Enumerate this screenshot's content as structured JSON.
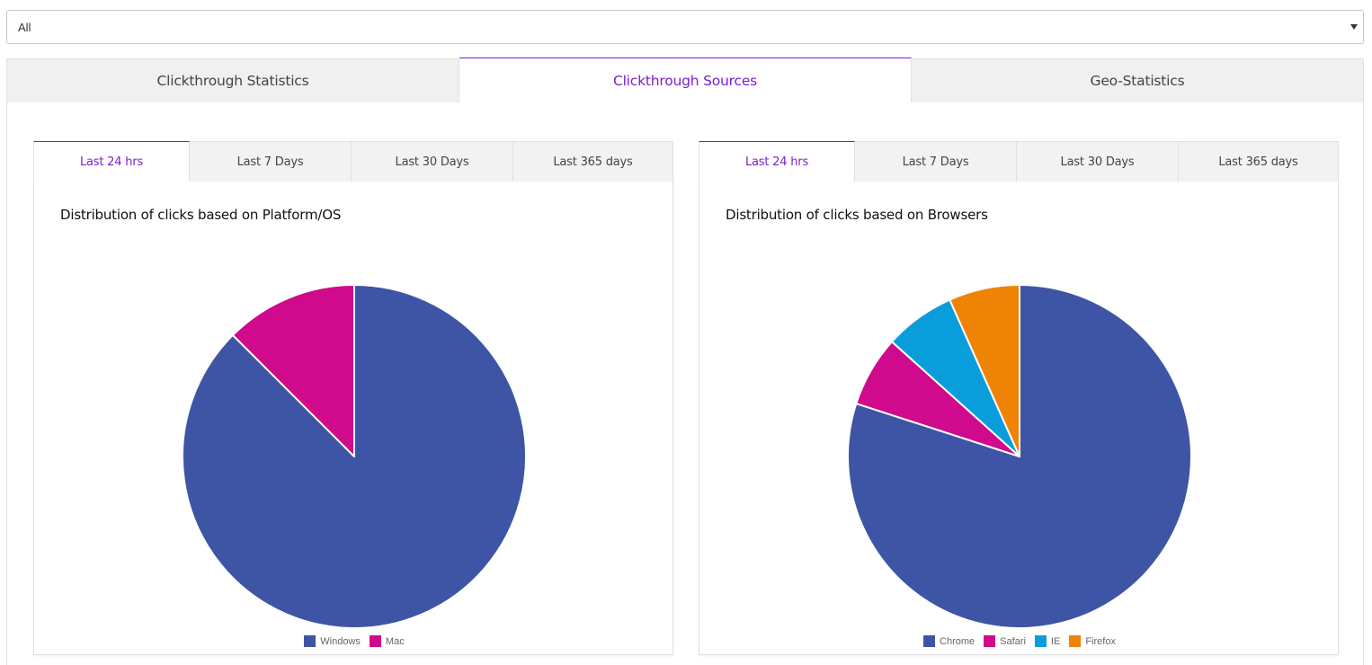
{
  "filter": {
    "selected": "All"
  },
  "main_tabs": [
    {
      "label": "Clickthrough Statistics",
      "active": false
    },
    {
      "label": "Clickthrough Sources",
      "active": true
    },
    {
      "label": "Geo-Statistics",
      "active": false
    }
  ],
  "colors": {
    "accent": "#7a1fcb",
    "windows": "#3e54a4",
    "mac": "#cf0a8c",
    "chrome": "#3e54a4",
    "safari": "#cf0a8c",
    "ie": "#0a9ddb",
    "firefox": "#ef8306"
  },
  "panels": [
    {
      "tabs": [
        "Last 24 hrs",
        "Last 7 Days",
        "Last 30 Days",
        "Last 365 days"
      ],
      "active_tab": 0,
      "title": "Distribution of clicks based on Platform/OS",
      "legend": [
        "Windows",
        "Mac"
      ]
    },
    {
      "tabs": [
        "Last 24 hrs",
        "Last 7 Days",
        "Last 30 Days",
        "Last 365 days"
      ],
      "active_tab": 0,
      "title": "Distribution of clicks based on Browsers",
      "legend": [
        "Chrome",
        "Safari",
        "IE",
        "Firefox"
      ]
    }
  ],
  "chart_data": [
    {
      "type": "pie",
      "title": "Distribution of clicks based on Platform/OS",
      "categories": [
        "Windows",
        "Mac"
      ],
      "values": [
        87.5,
        12.5
      ],
      "colors": [
        "#3e54a4",
        "#cf0a8c"
      ],
      "legend_position": "bottom"
    },
    {
      "type": "pie",
      "title": "Distribution of clicks based on Browsers",
      "categories": [
        "Chrome",
        "Safari",
        "IE",
        "Firefox"
      ],
      "values": [
        80,
        6.67,
        6.67,
        6.67
      ],
      "colors": [
        "#3e54a4",
        "#cf0a8c",
        "#0a9ddb",
        "#ef8306"
      ],
      "legend_position": "bottom"
    }
  ]
}
